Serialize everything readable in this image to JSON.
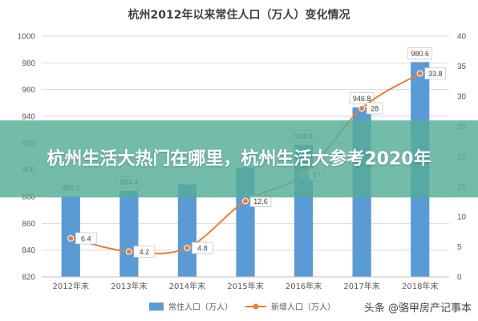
{
  "overlay": {
    "headline": "杭州生活大热门在哪里，杭州生活大参考2020年"
  },
  "watermark": {
    "text": "头条 @骆甲房产记事本"
  },
  "colors": {
    "bar": "#5b9bd5",
    "line": "#ed7d31",
    "grid": "#d9d9d9",
    "axis_text": "#595959",
    "overlay": "#56ad97"
  },
  "chart_data": {
    "type": "bar",
    "title": "杭州2012年以来常住人口（万人）变化情况",
    "categories": [
      "2012年末",
      "2013年末",
      "2014年末",
      "2015年末",
      "2016年末",
      "2017年末",
      "2018年末"
    ],
    "series": [
      {
        "name": "常住人口（万人）",
        "type": "bar",
        "axis": "left",
        "values": [
          880.2,
          884.4,
          889.2,
          901.8,
          918.8,
          946.8,
          980.6
        ],
        "labels": [
          "880.2",
          "884.4",
          "",
          "",
          "918.8",
          "946.8",
          "980.6"
        ]
      },
      {
        "name": "新增人口（万人）",
        "type": "line",
        "axis": "right",
        "values": [
          6.4,
          4.2,
          4.8,
          12.6,
          17,
          28,
          33.8
        ],
        "labels": [
          "6.4",
          "4.2",
          "4.8",
          "12.6",
          "17",
          "28",
          "33.8"
        ]
      }
    ],
    "y_left": {
      "min": 820,
      "max": 1000,
      "ticks": [
        820,
        840,
        860,
        880,
        900,
        920,
        940,
        960,
        980,
        1000
      ]
    },
    "y_right": {
      "min": 0,
      "max": 40,
      "ticks": [
        0,
        5,
        10,
        15,
        20,
        25,
        30,
        35,
        40
      ]
    },
    "grid": true,
    "legend_position": "bottom"
  }
}
